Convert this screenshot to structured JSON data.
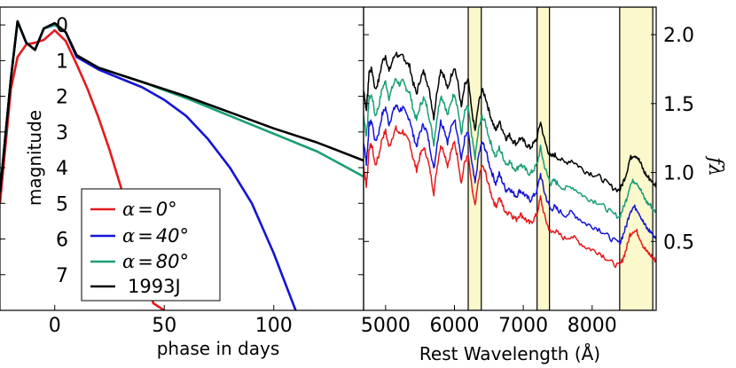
{
  "chart_data": [
    {
      "type": "line",
      "panel": "light curves",
      "xlabel": "phase in days",
      "ylabel": "magnitude",
      "xlim": [
        -25,
        141
      ],
      "ylim": [
        8,
        -0.5
      ],
      "x_ticks": [
        0,
        50,
        100
      ],
      "x_tick_labels": [
        "0",
        "50",
        "100"
      ],
      "y_ticks": [
        0,
        1,
        2,
        3,
        4,
        5,
        6,
        7
      ],
      "y_tick_labels": [
        "0",
        "1",
        "2",
        "3",
        "4",
        "5",
        "6",
        "7"
      ],
      "series": [
        {
          "name": "α=0°",
          "color": "#e41a1c",
          "x": [
            -25,
            -20,
            -17,
            -13,
            -9,
            -5,
            0,
            5,
            10,
            15,
            20,
            25,
            30,
            35,
            40,
            45,
            50
          ],
          "y": [
            5.0,
            1.8,
            0.9,
            0.55,
            0.5,
            0.42,
            0.15,
            0.45,
            1.1,
            1.8,
            2.6,
            3.5,
            4.5,
            5.6,
            6.8,
            7.8,
            8.0
          ]
        },
        {
          "name": "α=40°",
          "color": "#1414d8",
          "x": [
            -25,
            -20,
            -17,
            -13,
            -9,
            -5,
            0,
            5,
            10,
            20,
            30,
            40,
            50,
            60,
            70,
            80,
            90,
            100,
            110
          ],
          "y": [
            4.7,
            1.5,
            -0.1,
            0.5,
            0.7,
            0.1,
            0.0,
            0.2,
            0.9,
            1.25,
            1.5,
            1.75,
            2.1,
            2.55,
            3.2,
            4.0,
            5.0,
            6.4,
            8.0
          ]
        },
        {
          "name": "α=80°",
          "color": "#1a9e77",
          "x": [
            -25,
            -20,
            -17,
            -13,
            -9,
            -5,
            0,
            5,
            10,
            20,
            40,
            60,
            80,
            100,
            120,
            141
          ],
          "y": [
            4.7,
            1.5,
            -0.1,
            0.5,
            0.7,
            0.1,
            0.0,
            0.2,
            0.85,
            1.2,
            1.6,
            2.05,
            2.55,
            3.05,
            3.55,
            4.25
          ]
        },
        {
          "name": "1993J",
          "color": "#000000",
          "x": [
            -25,
            -20,
            -17,
            -13,
            -9,
            -5,
            0,
            5,
            10,
            20,
            40,
            60,
            80,
            100,
            120,
            141
          ],
          "y": [
            4.7,
            1.5,
            -0.1,
            0.5,
            0.7,
            0.1,
            -0.05,
            0.2,
            0.85,
            1.2,
            1.6,
            2.0,
            2.45,
            2.9,
            3.3,
            3.8
          ]
        }
      ],
      "legend": [
        "α=0°",
        "α=40°",
        "α=80°",
        "1993J"
      ],
      "legend_position": "lower-left"
    },
    {
      "type": "line",
      "panel": "spectra",
      "xlabel": "Rest Wavelength (Å)",
      "ylabel": "fλ",
      "y_axis_side": "right",
      "xlim": [
        4680,
        8930
      ],
      "ylim": [
        0.0,
        2.2
      ],
      "x_ticks": [
        5000,
        6000,
        7000,
        8000
      ],
      "x_tick_labels": [
        "5000",
        "6000",
        "7000",
        "8000"
      ],
      "y_ticks": [
        0.5,
        1.0,
        1.5,
        2.0
      ],
      "y_tick_labels": [
        "0.5",
        "1.0",
        "1.5",
        "2.0"
      ],
      "shaded_bands": [
        [
          6200,
          6390
        ],
        [
          7200,
          7380
        ],
        [
          8400,
          8880
        ]
      ],
      "series": [
        {
          "name": "α=0°",
          "color": "#e41a1c",
          "offset": 0.0
        },
        {
          "name": "α=40°",
          "color": "#1414d8",
          "offset": 0.17
        },
        {
          "name": "α=80°",
          "color": "#1a9e77",
          "offset": 0.36
        },
        {
          "name": "1993J",
          "color": "#000000",
          "offset": 0.55
        }
      ],
      "base_profile": {
        "x": [
          4680,
          4700,
          4720,
          4740,
          4760,
          4800,
          4850,
          4900,
          4950,
          5000,
          5050,
          5100,
          5150,
          5200,
          5250,
          5300,
          5350,
          5400,
          5450,
          5500,
          5550,
          5600,
          5650,
          5700,
          5750,
          5800,
          5850,
          5900,
          5950,
          6000,
          6050,
          6100,
          6150,
          6200,
          6250,
          6300,
          6350,
          6400,
          6450,
          6500,
          6550,
          6600,
          6650,
          6700,
          6750,
          6800,
          6850,
          6900,
          6950,
          7000,
          7050,
          7100,
          7150,
          7200,
          7250,
          7300,
          7350,
          7400,
          7450,
          7500,
          7600,
          7700,
          7800,
          7900,
          8000,
          8100,
          8200,
          8300,
          8400,
          8450,
          8500,
          8550,
          8600,
          8650,
          8700,
          8750,
          8800,
          8850,
          8900,
          8930
        ],
        "y": [
          1.05,
          0.98,
          0.9,
          1.02,
          1.18,
          1.2,
          1.05,
          1.12,
          1.25,
          1.3,
          1.18,
          1.26,
          1.32,
          1.28,
          1.3,
          1.25,
          1.22,
          1.1,
          1.02,
          1.12,
          1.18,
          1.12,
          1.0,
          0.85,
          1.05,
          1.2,
          1.15,
          1.05,
          1.15,
          1.22,
          1.1,
          0.92,
          1.08,
          1.12,
          0.9,
          0.75,
          0.95,
          1.05,
          1.0,
          0.9,
          0.82,
          0.75,
          0.82,
          0.76,
          0.7,
          0.72,
          0.68,
          0.66,
          0.7,
          0.68,
          0.65,
          0.63,
          0.66,
          0.7,
          0.82,
          0.7,
          0.62,
          0.56,
          0.58,
          0.56,
          0.52,
          0.54,
          0.5,
          0.46,
          0.44,
          0.42,
          0.38,
          0.34,
          0.32,
          0.38,
          0.45,
          0.55,
          0.58,
          0.57,
          0.52,
          0.46,
          0.42,
          0.4,
          0.37,
          0.36
        ]
      }
    }
  ],
  "legend_labels": {
    "a0": {
      "lhs": "α",
      "eq": "=",
      "val": "0",
      "deg": "°"
    },
    "a40": {
      "lhs": "α",
      "eq": "=",
      "val": "40",
      "deg": "°"
    },
    "a80": {
      "lhs": "α",
      "eq": "=",
      "val": "80",
      "deg": "°"
    },
    "sn": "1993J"
  }
}
